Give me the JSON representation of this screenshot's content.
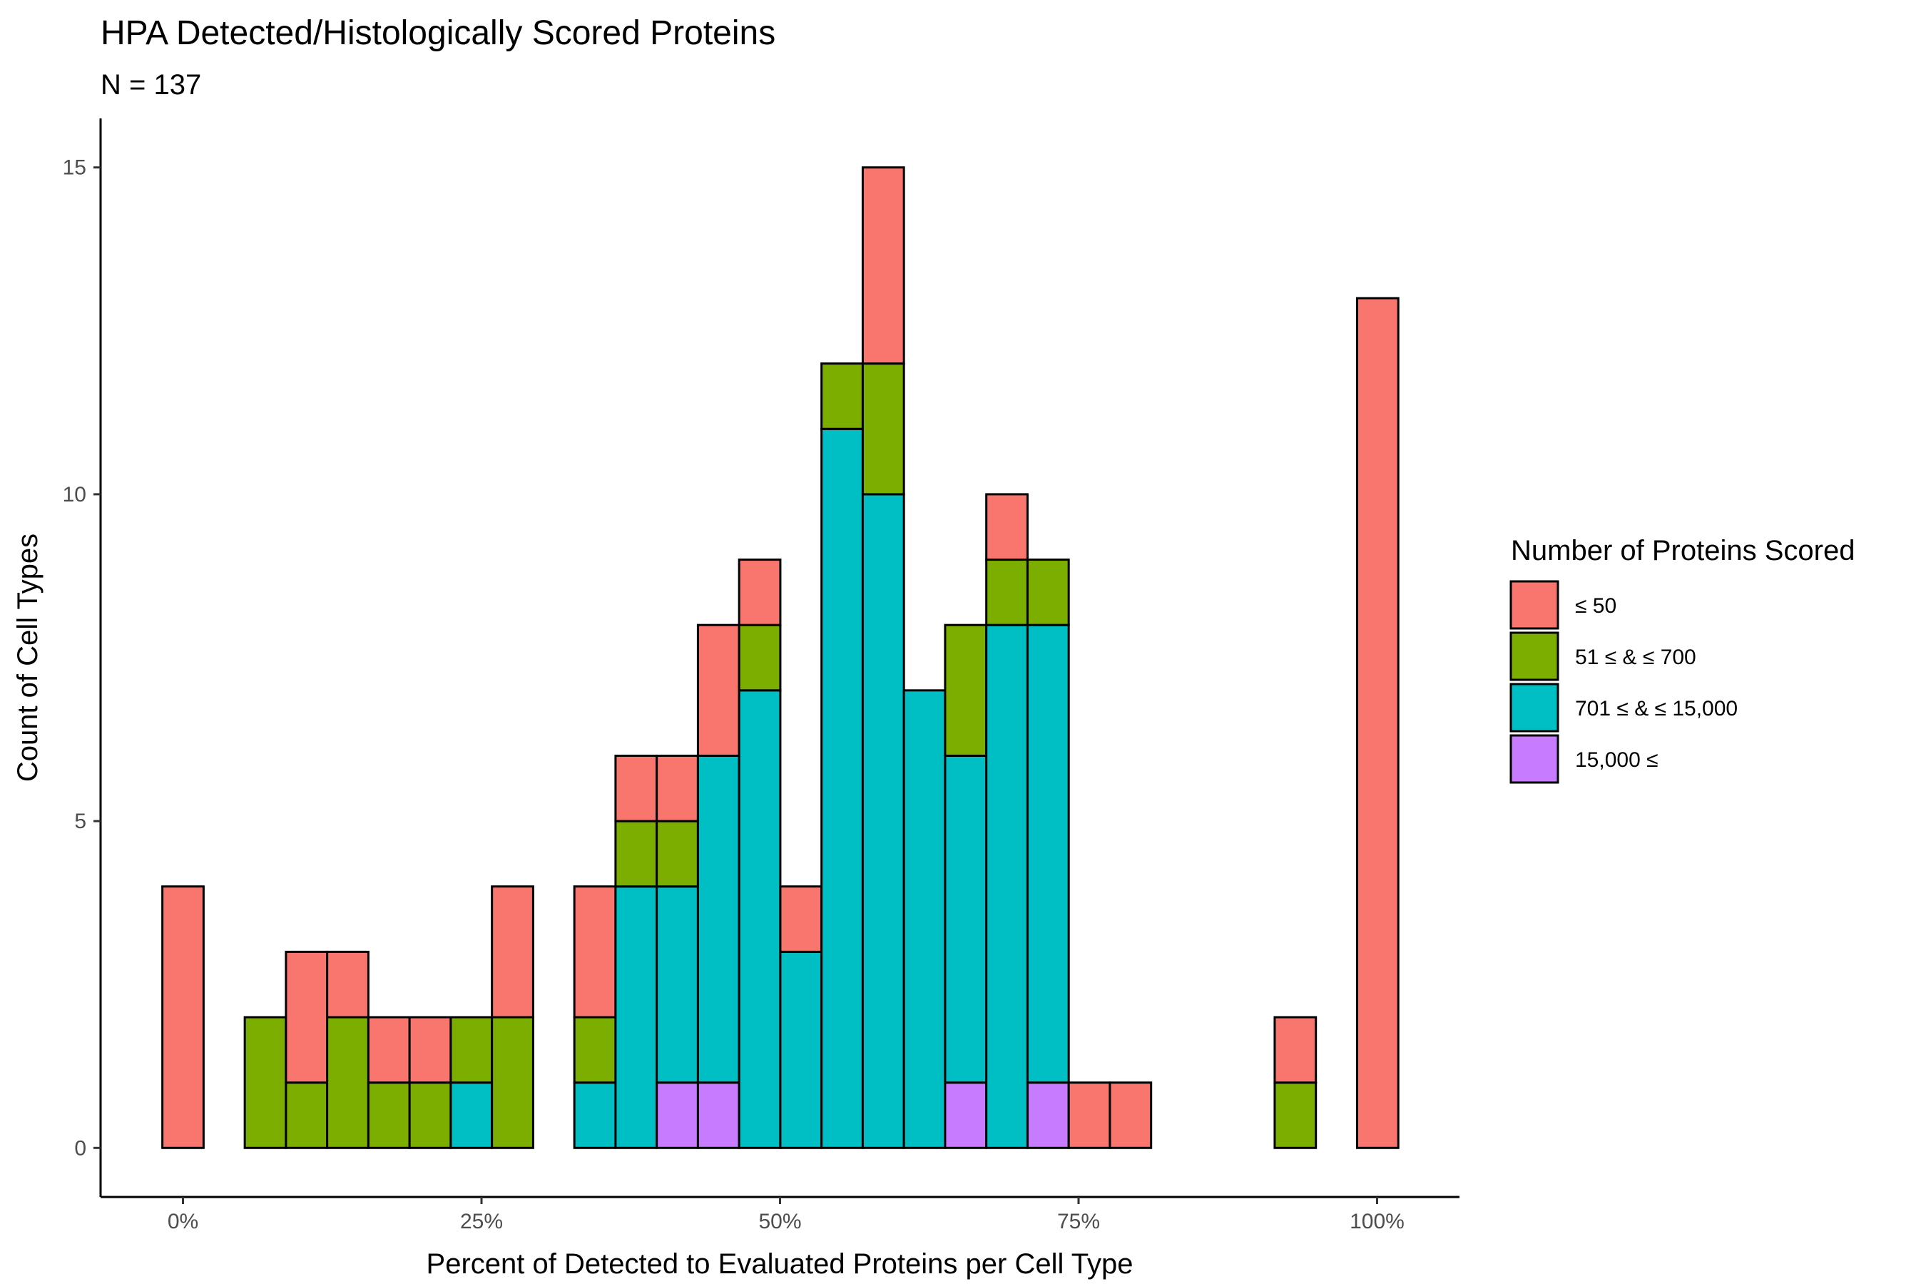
{
  "chart_data": {
    "type": "bar",
    "stacked": true,
    "title": "HPA Detected/Histologically Scored Proteins",
    "subtitle": "N =  137",
    "xlabel": "Percent of Detected to Evaluated Proteins per Cell Type",
    "ylabel": "Count of Cell Types",
    "x_ticks": [
      {
        "value": 0,
        "label": "0%"
      },
      {
        "value": 25,
        "label": "25%"
      },
      {
        "value": 50,
        "label": "50%"
      },
      {
        "value": 75,
        "label": "75%"
      },
      {
        "value": 100,
        "label": "100%"
      }
    ],
    "y_ticks": [
      0,
      5,
      10,
      15
    ],
    "xlim": [
      -6.9,
      106.9
    ],
    "ylim": [
      -0.75,
      15.75
    ],
    "bin_width": 3.45,
    "bin_centers": [
      0,
      3.45,
      6.9,
      10.35,
      13.8,
      17.25,
      20.7,
      24.15,
      27.6,
      31.05,
      34.5,
      37.95,
      41.4,
      44.85,
      48.3,
      51.75,
      55.2,
      58.65,
      62.1,
      65.55,
      69.0,
      72.45,
      75.9,
      79.35,
      82.8,
      86.25,
      89.7,
      93.15,
      96.6,
      100.05
    ],
    "legend_title": "Number of Proteins Scored",
    "legend_position": "right",
    "grid": false,
    "series": [
      {
        "name": "15,000 ≤",
        "color": "#C77CFF",
        "values": [
          0,
          0,
          0,
          0,
          0,
          0,
          0,
          0,
          0,
          0,
          0,
          0,
          1,
          1,
          0,
          0,
          0,
          0,
          0,
          1,
          0,
          1,
          0,
          0,
          0,
          0,
          0,
          0,
          0,
          0
        ]
      },
      {
        "name": "701 ≤ & ≤ 15,000",
        "color": "#00BFC4",
        "values": [
          0,
          0,
          0,
          0,
          0,
          0,
          0,
          1,
          0,
          0,
          1,
          4,
          3,
          5,
          7,
          3,
          11,
          10,
          7,
          5,
          8,
          7,
          0,
          0,
          0,
          0,
          0,
          0,
          0,
          0
        ]
      },
      {
        "name": "51 ≤ & ≤ 700",
        "color": "#7CAE00",
        "values": [
          0,
          0,
          2,
          1,
          2,
          1,
          1,
          1,
          2,
          0,
          1,
          1,
          1,
          0,
          1,
          0,
          1,
          2,
          0,
          2,
          1,
          1,
          0,
          0,
          0,
          0,
          0,
          1,
          0,
          0
        ]
      },
      {
        "name": "≤ 50",
        "color": "#F8766D",
        "values": [
          4,
          0,
          0,
          2,
          1,
          1,
          1,
          0,
          2,
          0,
          2,
          1,
          1,
          2,
          1,
          1,
          0,
          3,
          0,
          0,
          1,
          0,
          1,
          1,
          0,
          0,
          0,
          1,
          0,
          13
        ]
      }
    ],
    "legend_order": [
      "≤ 50",
      "51 ≤ & ≤ 700",
      "701 ≤ & ≤ 15,000",
      "15,000 ≤"
    ]
  }
}
